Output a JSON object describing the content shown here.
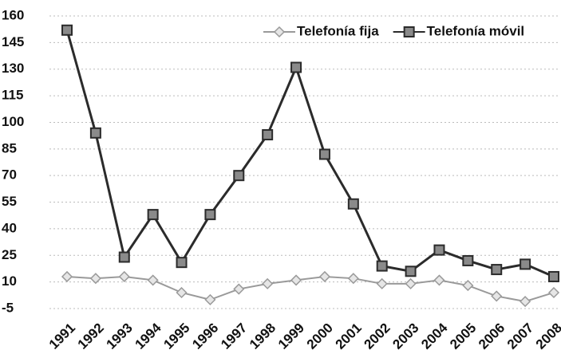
{
  "chart_data": {
    "type": "line",
    "categories": [
      "1991",
      "1992",
      "1993",
      "1994",
      "1995",
      "1996",
      "1997",
      "1998",
      "1999",
      "2000",
      "2001",
      "2002",
      "2003",
      "2004",
      "2005",
      "2006",
      "2007",
      "2008"
    ],
    "series": [
      {
        "name": "Telefonía fija",
        "color": "#9a9a9a",
        "marker": "diamond",
        "values": [
          13,
          12,
          13,
          11,
          4,
          0,
          6,
          9,
          11,
          13,
          12,
          9,
          9,
          11,
          8,
          2,
          -1,
          4
        ]
      },
      {
        "name": "Telefonía móvil",
        "color": "#2b2b2b",
        "marker": "square",
        "values": [
          152,
          94,
          24,
          48,
          21,
          48,
          70,
          93,
          131,
          82,
          54,
          19,
          16,
          28,
          22,
          17,
          20,
          13
        ]
      }
    ],
    "ylim": [
      -5,
      160
    ],
    "yticks": [
      -5,
      10,
      25,
      40,
      55,
      70,
      85,
      100,
      115,
      130,
      145,
      160
    ],
    "grid": true,
    "legend": "top-right"
  }
}
